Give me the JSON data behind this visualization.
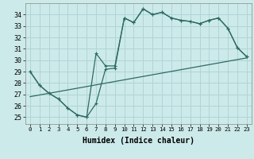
{
  "bg_color": "#cdeaea",
  "grid_color": "#b0d4d4",
  "line_color": "#2e6b62",
  "xlabel": "Humidex (Indice chaleur)",
  "xlim": [
    -0.5,
    23.5
  ],
  "ylim": [
    24.4,
    35.0
  ],
  "yticks": [
    25,
    26,
    27,
    28,
    29,
    30,
    31,
    32,
    33,
    34
  ],
  "xticks": [
    0,
    1,
    2,
    3,
    4,
    5,
    6,
    7,
    8,
    9,
    10,
    11,
    12,
    13,
    14,
    15,
    16,
    17,
    18,
    19,
    20,
    21,
    22,
    23
  ],
  "line1_x": [
    0,
    1,
    2,
    3,
    4,
    5,
    6,
    7,
    8,
    9,
    10,
    11,
    12,
    13,
    14,
    15,
    16,
    17,
    18,
    19,
    20,
    21,
    22,
    23
  ],
  "line1_y": [
    29.0,
    27.8,
    27.1,
    26.6,
    25.8,
    25.2,
    25.0,
    26.2,
    29.2,
    29.3,
    33.7,
    33.3,
    34.5,
    34.0,
    34.2,
    33.7,
    33.5,
    33.4,
    33.2,
    33.5,
    33.7,
    32.8,
    31.1,
    30.3
  ],
  "line2_x": [
    0,
    1,
    2,
    3,
    4,
    5,
    6,
    7,
    8,
    9,
    10,
    11,
    12,
    13,
    14,
    15,
    16,
    17,
    18,
    19,
    20,
    21,
    22,
    23
  ],
  "line2_y": [
    29.0,
    27.8,
    27.1,
    26.6,
    25.8,
    25.2,
    25.0,
    30.6,
    29.5,
    29.5,
    33.7,
    33.3,
    34.5,
    34.0,
    34.2,
    33.7,
    33.5,
    33.4,
    33.2,
    33.5,
    33.7,
    32.8,
    31.1,
    30.3
  ],
  "line3_x": [
    0,
    23
  ],
  "line3_y": [
    26.8,
    30.2
  ],
  "figsize": [
    3.2,
    2.0
  ],
  "dpi": 100
}
